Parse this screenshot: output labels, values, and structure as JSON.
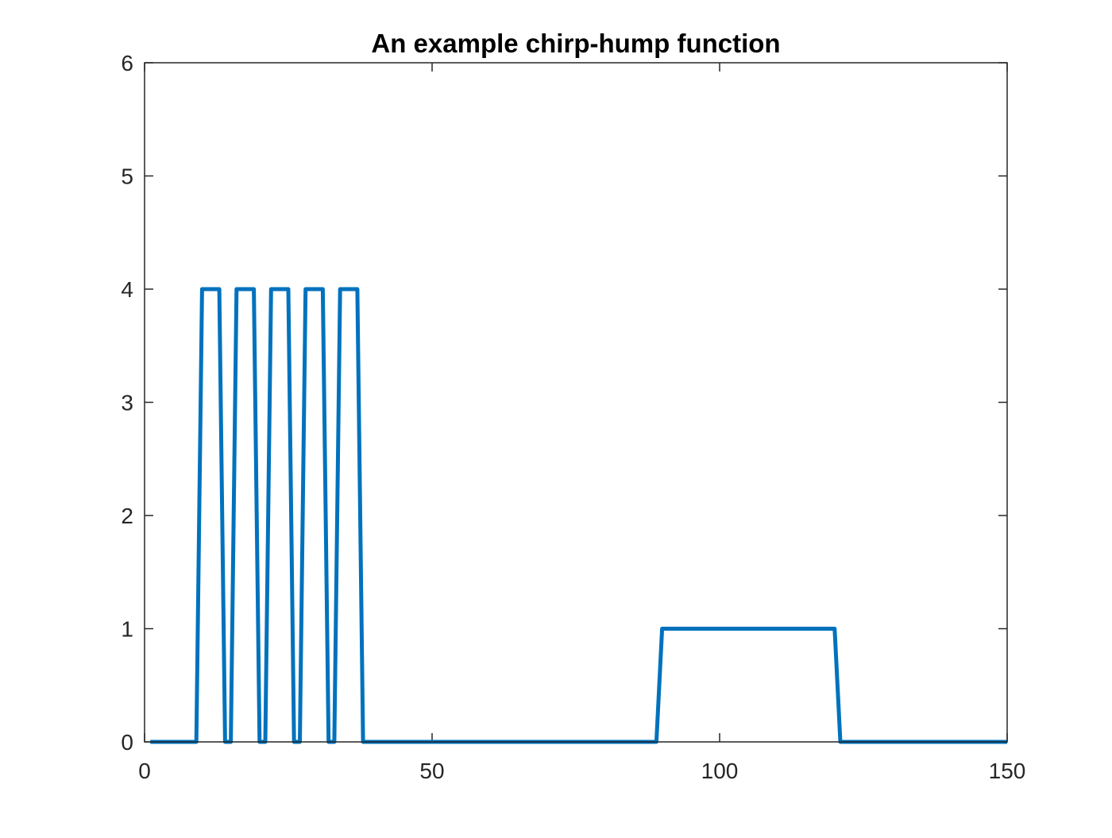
{
  "chart_data": {
    "type": "line",
    "title": "An example chirp-hump function",
    "xlabel": "",
    "ylabel": "",
    "xlim": [
      0,
      150
    ],
    "ylim": [
      0,
      6
    ],
    "x_ticks": [
      0,
      50,
      100,
      150
    ],
    "x_tick_labels": [
      "0",
      "50",
      "100",
      "150"
    ],
    "y_ticks": [
      0,
      1,
      2,
      3,
      4,
      5,
      6
    ],
    "y_tick_labels": [
      "0",
      "1",
      "2",
      "3",
      "4",
      "5",
      "6"
    ],
    "grid": false,
    "line_color": "#0072BD",
    "series": [
      {
        "x": [
          1,
          9,
          10,
          13,
          14,
          15,
          16,
          19,
          20,
          21,
          22,
          25,
          26,
          27,
          28,
          31,
          32,
          33,
          34,
          37,
          38,
          89,
          90,
          120,
          121,
          150
        ],
        "y": [
          0,
          0,
          4,
          4,
          0,
          0,
          4,
          4,
          0,
          0,
          4,
          4,
          0,
          0,
          4,
          4,
          0,
          0,
          4,
          4,
          0,
          0,
          1,
          1,
          0,
          0
        ]
      }
    ]
  }
}
